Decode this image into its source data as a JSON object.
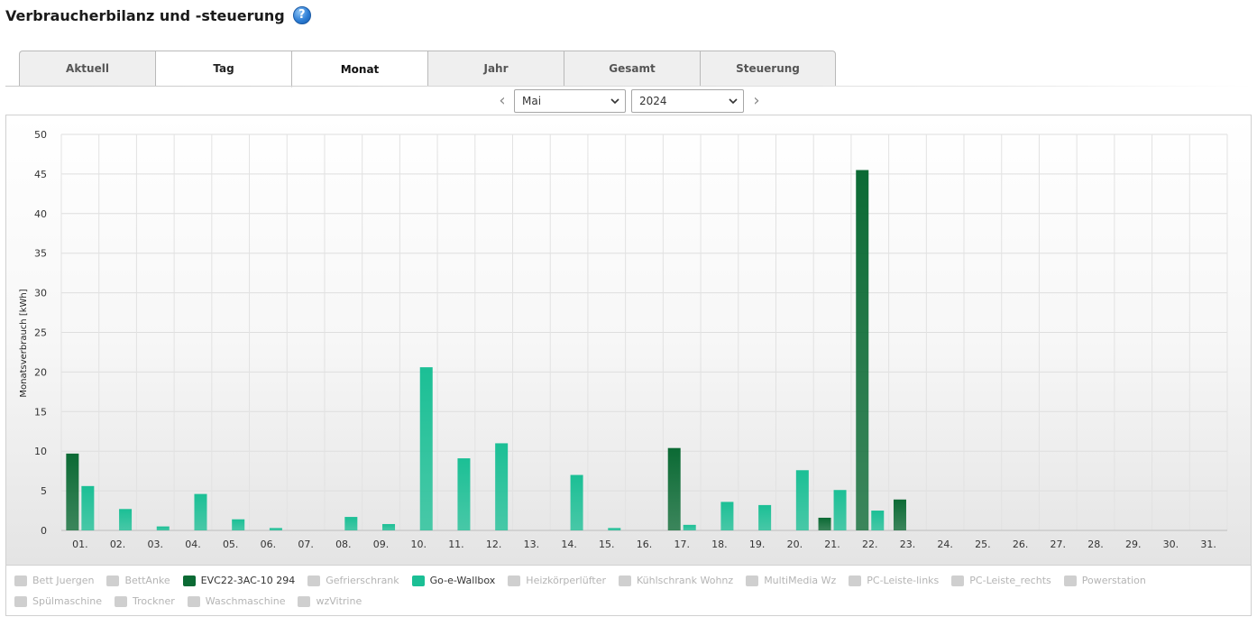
{
  "page": {
    "title": "Verbraucherbilanz und -steuerung",
    "help_glyph": "?"
  },
  "tabs": [
    {
      "label": "Aktuell",
      "state": "inactive"
    },
    {
      "label": "Tag",
      "state": "light"
    },
    {
      "label": "Monat",
      "state": "active"
    },
    {
      "label": "Jahr",
      "state": "inactive"
    },
    {
      "label": "Gesamt",
      "state": "inactive"
    },
    {
      "label": "Steuerung",
      "state": "inactive"
    }
  ],
  "period": {
    "prev_glyph": "‹",
    "next_glyph": "›",
    "month": "Mai",
    "year": "2024"
  },
  "chart_data": {
    "type": "bar",
    "ylabel": "Monatsverbrauch [kWh]",
    "xlabel": "",
    "ylim": [
      0,
      50
    ],
    "yticks": [
      "0",
      "5",
      "10",
      "15",
      "20",
      "25",
      "30",
      "35",
      "40",
      "45",
      "50"
    ],
    "grid": true,
    "categories": [
      "01.",
      "02.",
      "03.",
      "04.",
      "05.",
      "06.",
      "07.",
      "08.",
      "09.",
      "10.",
      "11.",
      "12.",
      "13.",
      "14.",
      "15.",
      "16.",
      "17.",
      "18.",
      "19.",
      "20.",
      "21.",
      "22.",
      "23.",
      "24.",
      "25.",
      "26.",
      "27.",
      "28.",
      "29.",
      "30.",
      "31."
    ],
    "series": [
      {
        "name": "EVC22-3AC-10 294",
        "color": "#0b6a34",
        "values": [
          9.7,
          0,
          0,
          0,
          0,
          0,
          0,
          0,
          0,
          0,
          0,
          0,
          0,
          0,
          0,
          0,
          10.4,
          0,
          0,
          0,
          1.6,
          45.5,
          3.9,
          0,
          0,
          0,
          0,
          0,
          0,
          0,
          0
        ]
      },
      {
        "name": "Go-e-Wallbox",
        "color": "#1bbf95",
        "values": [
          5.6,
          2.7,
          0.5,
          4.6,
          1.4,
          0.3,
          0,
          1.7,
          0.8,
          20.6,
          9.1,
          11.0,
          0,
          7.0,
          0.3,
          0,
          0.7,
          3.6,
          3.2,
          7.6,
          5.1,
          2.5,
          0,
          0,
          0,
          0,
          0,
          0,
          0,
          0,
          0
        ]
      }
    ]
  },
  "legend": [
    {
      "name": "Bett Juergen",
      "active": false
    },
    {
      "name": "BettAnke",
      "active": false
    },
    {
      "name": "EVC22-3AC-10 294",
      "active": true,
      "color": "#0b6a34"
    },
    {
      "name": "Gefrierschrank",
      "active": false
    },
    {
      "name": "Go-e-Wallbox",
      "active": true,
      "color": "#1bbf95"
    },
    {
      "name": "Heizkörperlüfter",
      "active": false
    },
    {
      "name": "Kühlschrank Wohnz",
      "active": false
    },
    {
      "name": "MultiMedia Wz",
      "active": false
    },
    {
      "name": "PC-Leiste-links",
      "active": false
    },
    {
      "name": "PC-Leiste_rechts",
      "active": false
    },
    {
      "name": "Powerstation",
      "active": false
    },
    {
      "name": "Spülmaschine",
      "active": false
    },
    {
      "name": "Trockner",
      "active": false
    },
    {
      "name": "Waschmaschine",
      "active": false
    },
    {
      "name": "wzVitrine",
      "active": false
    }
  ]
}
